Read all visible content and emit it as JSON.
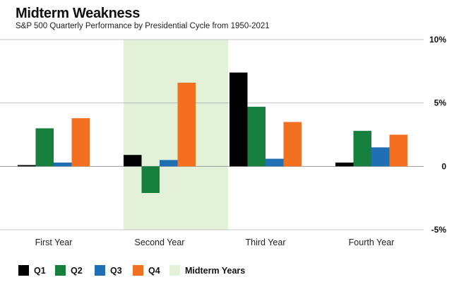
{
  "chart_data": {
    "type": "bar",
    "title": "Midterm Weakness",
    "subtitle": "S&P 500 Quarterly Performance by Presidential Cycle from 1950-2021",
    "categories": [
      "First Year",
      "Second Year",
      "Third Year",
      "Fourth Year"
    ],
    "series": [
      {
        "name": "Q1",
        "color": "#000000",
        "values": [
          0.1,
          0.9,
          7.4,
          0.3
        ]
      },
      {
        "name": "Q2",
        "color": "#15803d",
        "values": [
          3.0,
          -2.1,
          4.7,
          2.8
        ]
      },
      {
        "name": "Q3",
        "color": "#1f6fb2",
        "values": [
          0.3,
          0.5,
          0.6,
          1.5
        ]
      },
      {
        "name": "Q4",
        "color": "#f37021",
        "values": [
          3.8,
          6.6,
          3.5,
          2.5
        ]
      }
    ],
    "ylim": [
      -5,
      10
    ],
    "y_ticks": [
      10,
      5,
      0,
      -5
    ],
    "y_tick_labels": [
      "10%",
      "5%",
      "0",
      "-5%"
    ],
    "y_axis_side": "right",
    "grid": true,
    "highlight": {
      "category": "Second Year",
      "label": "Midterm Years",
      "color": "#e3f1d9"
    },
    "legend": {
      "position": "bottom-left",
      "items": [
        {
          "label": "Q1",
          "color": "#000000"
        },
        {
          "label": "Q2",
          "color": "#15803d"
        },
        {
          "label": "Q3",
          "color": "#1f6fb2"
        },
        {
          "label": "Q4",
          "color": "#f37021"
        },
        {
          "label": "Midterm Years",
          "color": "#e3f1d9"
        }
      ]
    }
  }
}
